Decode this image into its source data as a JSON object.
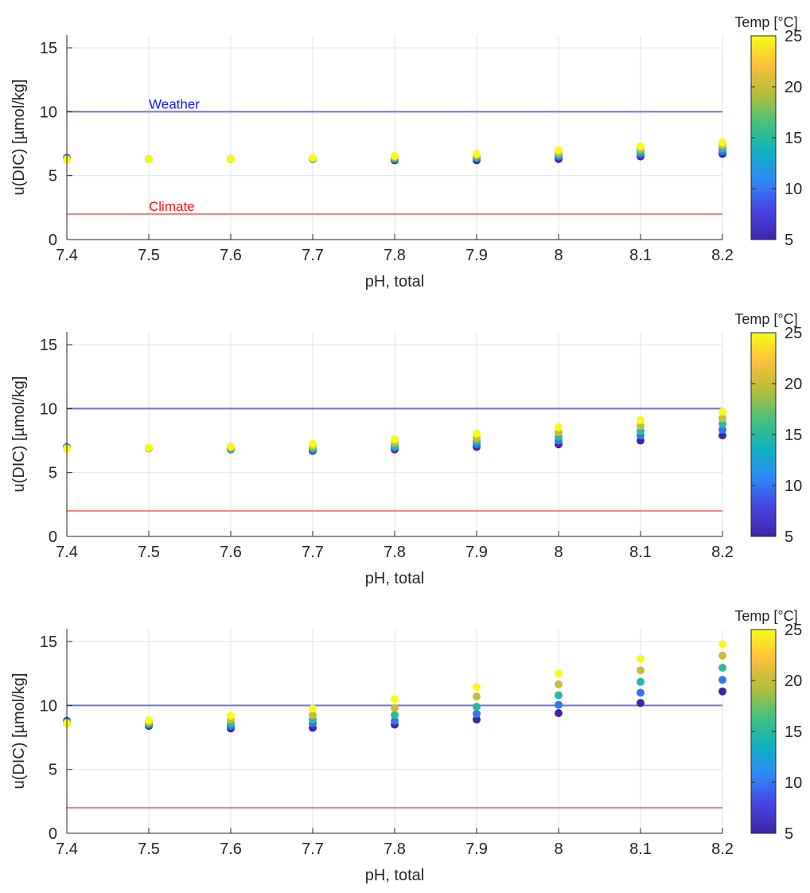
{
  "colors": {
    "weather_line": "#7070ee",
    "climate_line": "#f07f7f",
    "weather_label": "#1414ff",
    "climate_label": "#ff1414",
    "grid": "#e3e3e3",
    "axis": "#262626"
  },
  "colormap": {
    "name": "parula",
    "stops": [
      "#3e26a8",
      "#4743e0",
      "#2e87f7",
      "#0fb1c2",
      "#44c27d",
      "#b4bd3a",
      "#fcbf3c",
      "#f9fb15"
    ]
  },
  "chart_data": [
    {
      "type": "scatter",
      "xlabel": "pH, total",
      "ylabel": "u(DIC) [µmol/kg]",
      "xlim": [
        7.4,
        8.2
      ],
      "ylim": [
        0,
        16
      ],
      "xticks": [
        7.4,
        7.5,
        7.6,
        7.7,
        7.8,
        7.9,
        8,
        8.1,
        8.2
      ],
      "yticks": [
        0,
        5,
        10,
        15
      ],
      "grid": true,
      "colorbar": {
        "label": "Temp [°C]",
        "range": [
          5,
          25
        ],
        "ticks": [
          5,
          10,
          15,
          20,
          25
        ]
      },
      "reference_lines": [
        {
          "label": "Weather",
          "y": 10,
          "color": "#7070ee",
          "label_color": "#1414ff"
        },
        {
          "label": "Climate",
          "y": 2,
          "color": "#f07f7f",
          "label_color": "#ff1414"
        }
      ],
      "temperatures": [
        5,
        10,
        15,
        20,
        25
      ],
      "x": [
        7.4,
        7.5,
        7.6,
        7.7,
        7.8,
        7.9,
        8,
        8.1,
        8.2
      ],
      "y": [
        [
          6.4,
          6.3,
          6.3,
          6.3,
          6.2,
          6.2,
          6.3,
          6.5,
          6.7
        ],
        [
          6.35,
          6.3,
          6.3,
          6.3,
          6.3,
          6.35,
          6.5,
          6.7,
          6.9
        ],
        [
          6.3,
          6.3,
          6.3,
          6.3,
          6.35,
          6.45,
          6.65,
          6.9,
          7.15
        ],
        [
          6.3,
          6.3,
          6.3,
          6.35,
          6.45,
          6.6,
          6.8,
          7.1,
          7.4
        ],
        [
          6.25,
          6.3,
          6.3,
          6.4,
          6.55,
          6.7,
          7.0,
          7.3,
          7.6
        ]
      ]
    },
    {
      "type": "scatter",
      "xlabel": "pH, total",
      "ylabel": "u(DIC) [µmol/kg]",
      "xlim": [
        7.4,
        8.2
      ],
      "ylim": [
        0,
        16
      ],
      "xticks": [
        7.4,
        7.5,
        7.6,
        7.7,
        7.8,
        7.9,
        8,
        8.1,
        8.2
      ],
      "yticks": [
        0,
        5,
        10,
        15
      ],
      "grid": true,
      "colorbar": {
        "label": "Temp [°C]",
        "range": [
          5,
          25
        ],
        "ticks": [
          5,
          10,
          15,
          20,
          25
        ]
      },
      "reference_lines": [
        {
          "y": 10,
          "color": "#7070ee"
        },
        {
          "y": 2,
          "color": "#f07f7f"
        }
      ],
      "temperatures": [
        5,
        10,
        15,
        20,
        25
      ],
      "x": [
        7.4,
        7.5,
        7.6,
        7.7,
        7.8,
        7.9,
        8,
        8.1,
        8.2
      ],
      "y": [
        [
          7.0,
          6.9,
          6.8,
          6.7,
          6.8,
          7.0,
          7.2,
          7.5,
          7.9
        ],
        [
          7.0,
          6.9,
          6.8,
          6.8,
          6.95,
          7.2,
          7.5,
          7.9,
          8.35
        ],
        [
          6.95,
          6.9,
          6.85,
          6.9,
          7.1,
          7.45,
          7.8,
          8.25,
          8.8
        ],
        [
          6.9,
          6.9,
          6.95,
          7.05,
          7.35,
          7.7,
          8.15,
          8.65,
          9.25
        ],
        [
          6.85,
          6.95,
          7.05,
          7.25,
          7.6,
          8.05,
          8.55,
          9.1,
          9.75
        ]
      ]
    },
    {
      "type": "scatter",
      "xlabel": "pH, total",
      "ylabel": "u(DIC) [µmol/kg]",
      "xlim": [
        7.4,
        8.2
      ],
      "ylim": [
        0,
        16
      ],
      "xticks": [
        7.4,
        7.5,
        7.6,
        7.7,
        7.8,
        7.9,
        8,
        8.1,
        8.2
      ],
      "yticks": [
        0,
        5,
        10,
        15
      ],
      "grid": true,
      "colorbar": {
        "label": "Temp [°C]",
        "range": [
          5,
          25
        ],
        "ticks": [
          5,
          10,
          15,
          20,
          25
        ]
      },
      "reference_lines": [
        {
          "y": 10,
          "color": "#7070ee"
        },
        {
          "y": 2,
          "color": "#f07f7f"
        }
      ],
      "temperatures": [
        5,
        10,
        15,
        20,
        25
      ],
      "x": [
        7.4,
        7.5,
        7.6,
        7.7,
        7.8,
        7.9,
        8,
        8.1,
        8.2
      ],
      "y": [
        [
          8.8,
          8.4,
          8.2,
          8.25,
          8.5,
          8.9,
          9.4,
          10.2,
          11.1
        ],
        [
          8.7,
          8.5,
          8.4,
          8.6,
          8.8,
          9.35,
          10.05,
          11.0,
          12.0
        ],
        [
          8.7,
          8.6,
          8.6,
          8.9,
          9.25,
          9.9,
          10.8,
          11.85,
          12.95
        ],
        [
          8.6,
          8.7,
          8.9,
          9.25,
          9.8,
          10.7,
          11.65,
          12.75,
          13.9
        ],
        [
          8.6,
          8.85,
          9.2,
          9.75,
          10.5,
          11.45,
          12.5,
          13.65,
          14.8
        ]
      ]
    }
  ]
}
